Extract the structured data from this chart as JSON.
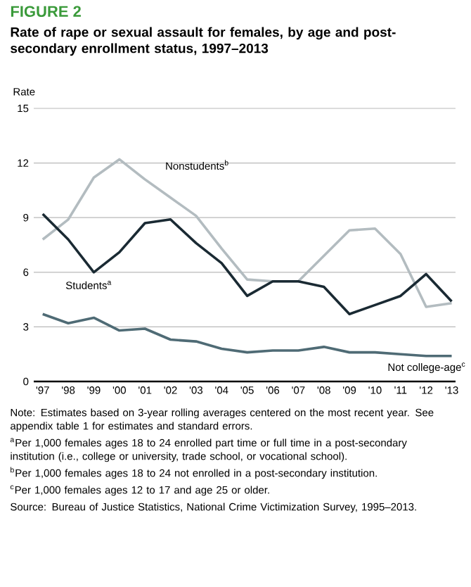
{
  "chart_data": {
    "type": "line",
    "title": "FIGURE 2",
    "subtitle": "Rate of rape or sexual assault for females, by age and post-secondary enrollment status, 1997–2013",
    "ylabel": "Rate",
    "categories": [
      "'97",
      "'98",
      "'99",
      "'00",
      "'01",
      "'02",
      "'03",
      "'04",
      "'05",
      "'06",
      "'07",
      "'08",
      "'09",
      "'10",
      "'11",
      "'12",
      "'13"
    ],
    "series": [
      {
        "name": "Nonstudents$^{b}$",
        "color": "#b3bcc0",
        "values": [
          7.8,
          8.9,
          11.2,
          12.2,
          11.1,
          10.1,
          9.1,
          7.3,
          5.6,
          5.5,
          5.5,
          6.9,
          8.3,
          8.4,
          7.0,
          4.1,
          4.3
        ]
      },
      {
        "name": "Students$^{a}$",
        "color": "#1a2a33",
        "values": [
          9.2,
          7.8,
          6.0,
          7.1,
          8.7,
          8.9,
          7.6,
          6.5,
          4.7,
          5.5,
          5.5,
          5.2,
          3.7,
          4.2,
          4.7,
          5.9,
          4.4
        ]
      },
      {
        "name": "Not college-age$^{c}$",
        "color": "#4f6b75",
        "values": [
          3.7,
          3.2,
          3.5,
          2.8,
          2.9,
          2.3,
          2.2,
          1.8,
          1.6,
          1.7,
          1.7,
          1.9,
          1.6,
          1.6,
          1.5,
          1.4,
          1.4
        ]
      }
    ],
    "ylim": [
      0,
      15
    ],
    "yticks": [
      0,
      3,
      6,
      9,
      12,
      15
    ],
    "grid": "y",
    "marker": "none",
    "line_style": "solid",
    "annotations": [
      "Note: Estimates based on 3-year rolling averages centered on the most recent year. See appendix table 1 for estimates and standard errors.",
      "$^{a}$Per 1,000 females ages 18 to 24 enrolled part time or full time in a post-secondary institution (i.e., college or university, trade school, or vocational school).",
      "$^{b}$Per 1,000 females ages 18 to 24 not enrolled in a post-secondary institution.",
      "$^{c}$Per 1,000 females ages 12 to 17 and age 25 or older.",
      "Source: Bureau of Justice Statistics, National Crime Victimization Survey, 1995–2013."
    ]
  }
}
